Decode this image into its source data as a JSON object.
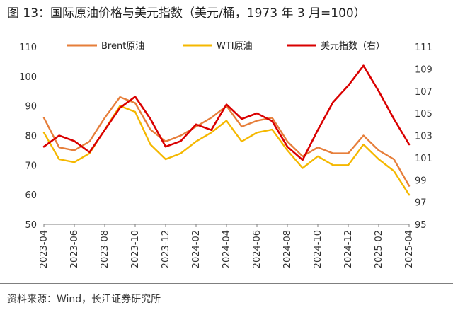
{
  "figure": {
    "title": "图 13：国际原油价格与美元指数（美元/桶，1973 年 3 月=100）",
    "source": "资料来源：Wind，长江证券研究所"
  },
  "colors": {
    "brent": "#E67E3A",
    "wti": "#F5B800",
    "usd": "#D90000"
  },
  "chart_data": {
    "type": "line",
    "x": [
      "2023-04",
      "2023-05",
      "2023-06",
      "2023-07",
      "2023-08",
      "2023-09",
      "2023-10",
      "2023-11",
      "2023-12",
      "2024-01",
      "2024-02",
      "2024-03",
      "2024-04",
      "2024-05",
      "2024-06",
      "2024-07",
      "2024-08",
      "2024-09",
      "2024-10",
      "2024-11",
      "2024-12",
      "2025-01",
      "2025-02",
      "2025-03",
      "2025-04"
    ],
    "x_ticks": [
      "2023-04",
      "2023-06",
      "2023-08",
      "2023-10",
      "2023-12",
      "2024-02",
      "2024-04",
      "2024-06",
      "2024-08",
      "2024-10",
      "2024-12",
      "2025-02",
      "2025-04"
    ],
    "y_left": {
      "ylim": [
        50,
        110
      ],
      "ticks": [
        50,
        60,
        70,
        80,
        90,
        100,
        110
      ]
    },
    "y_right": {
      "ylim": [
        95,
        111
      ],
      "ticks": [
        95,
        97,
        99,
        101,
        103,
        105,
        107,
        109,
        111
      ]
    },
    "series": [
      {
        "name": "Brent原油",
        "axis": "left",
        "color": "#E67E3A",
        "values": [
          86,
          76,
          75,
          78,
          86,
          93,
          91,
          82,
          78,
          80,
          83,
          86,
          90,
          83,
          85,
          86,
          78,
          73,
          76,
          74,
          74,
          80,
          75,
          72,
          63
        ]
      },
      {
        "name": "WTI原油",
        "axis": "left",
        "color": "#F5B800",
        "values": [
          81,
          72,
          71,
          74,
          82,
          90,
          88,
          77,
          72,
          74,
          78,
          81,
          85,
          78,
          81,
          82,
          75,
          69,
          73,
          70,
          70,
          77,
          72,
          68,
          60
        ]
      },
      {
        "name": "美元指数（右）",
        "axis": "right",
        "color": "#D90000",
        "values": [
          102.0,
          103.0,
          102.5,
          101.5,
          103.5,
          105.5,
          106.5,
          104.5,
          102.0,
          102.5,
          104.0,
          103.5,
          105.8,
          104.5,
          105.0,
          104.3,
          102.0,
          100.8,
          103.5,
          106.0,
          107.5,
          109.3,
          107.0,
          104.5,
          102.2
        ]
      }
    ],
    "legend_placement": "top",
    "grid": false,
    "xlabel": "",
    "ylabel": ""
  }
}
